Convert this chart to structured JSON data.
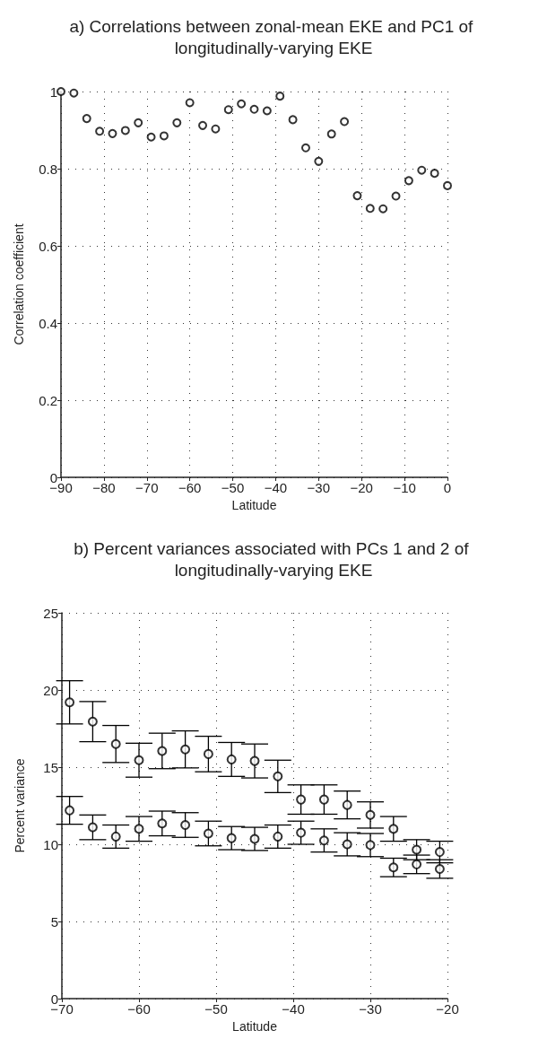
{
  "chart_data": [
    {
      "type": "scatter",
      "title": "a) Correlations between zonal-mean EKE and PC1 of longitudinally-varying EKE",
      "xlabel": "Latitude",
      "ylabel": "Correlation coefficient",
      "x": [
        -90,
        -87,
        -84,
        -81,
        -78,
        -75,
        -72,
        -69,
        -66,
        -63,
        -60,
        -57,
        -54,
        -51,
        -48,
        -45,
        -42,
        -39,
        -36,
        -33,
        -30,
        -27,
        -24,
        -21,
        -18,
        -15,
        -12,
        -9,
        -6,
        -3,
        0
      ],
      "series": [
        {
          "color": "#000000",
          "values": [
            1.0,
            0.996,
            0.93,
            0.897,
            0.891,
            0.899,
            0.919,
            0.882,
            0.885,
            0.919,
            0.971,
            0.912,
            0.903,
            0.953,
            0.968,
            0.954,
            0.95,
            0.988,
            0.927,
            0.854,
            0.819,
            0.89,
            0.922,
            0.73,
            0.697,
            0.696,
            0.729,
            0.769,
            0.796,
            0.788,
            0.756
          ]
        }
      ],
      "xlim": [
        -90,
        0
      ],
      "xticks": [
        -90,
        -80,
        -70,
        -60,
        -50,
        -40,
        -30,
        -20,
        -10,
        0
      ],
      "ylim": [
        0,
        1
      ],
      "yticks": [
        0,
        0.2,
        0.4,
        0.6,
        0.8,
        1
      ],
      "grid": true,
      "marker": "circle"
    },
    {
      "type": "scatter",
      "title": "b) Percent variances associated with PCs 1 and 2 of longitudinally-varying EKE",
      "xlabel": "Latitude",
      "ylabel": "Percent variance",
      "x": [
        -69,
        -66,
        -63,
        -60,
        -57,
        -54,
        -51,
        -48,
        -45,
        -42,
        -39,
        -36,
        -33,
        -30,
        -27,
        -24,
        -21
      ],
      "series": [
        {
          "color": "#000000",
          "values": [
            19.2,
            17.95,
            16.5,
            15.45,
            16.05,
            16.15,
            15.85,
            15.5,
            15.4,
            14.4,
            12.9,
            12.9,
            12.55,
            11.9,
            11.0,
            9.65,
            9.5
          ],
          "errors": [
            1.4,
            1.3,
            1.2,
            1.1,
            1.15,
            1.2,
            1.15,
            1.1,
            1.1,
            1.05,
            0.95,
            0.95,
            0.9,
            0.85,
            0.8,
            0.65,
            0.7
          ]
        },
        {
          "color": "#000000",
          "values": [
            12.2,
            11.1,
            10.5,
            11.0,
            11.35,
            11.25,
            10.7,
            10.4,
            10.35,
            10.5,
            10.75,
            10.25,
            10.0,
            9.95,
            8.5,
            8.7,
            8.4
          ],
          "errors": [
            0.9,
            0.8,
            0.75,
            0.8,
            0.8,
            0.8,
            0.8,
            0.75,
            0.75,
            0.75,
            0.75,
            0.75,
            0.75,
            0.75,
            0.6,
            0.6,
            0.6
          ]
        }
      ],
      "xlim": [
        -70,
        -20
      ],
      "xticks": [
        -70,
        -60,
        -50,
        -40,
        -30,
        -20
      ],
      "ylim": [
        0,
        25
      ],
      "yticks": [
        0,
        5,
        10,
        15,
        20,
        25
      ],
      "grid": true,
      "marker": "circle"
    }
  ]
}
